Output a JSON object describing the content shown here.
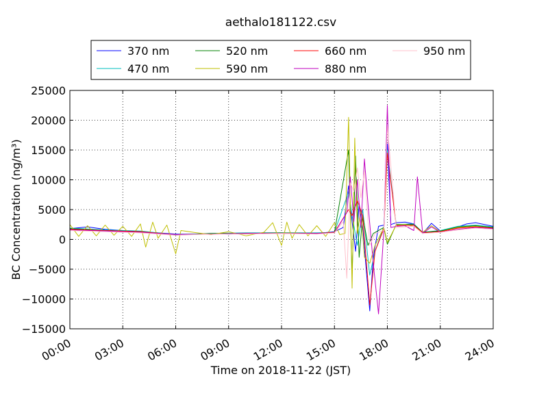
{
  "chart_data": {
    "type": "line",
    "title": "aethalo181122.csv",
    "xlabel": "Time on 2018-11-22 (JST)",
    "ylabel": "BC Concentration (ng/m³)",
    "xlim_hours": [
      0,
      24
    ],
    "ylim": [
      -15000,
      25000
    ],
    "grid": true,
    "grid_style": "dotted",
    "legend_position": "top, above plot",
    "x_ticks": [
      {
        "value": 0,
        "label": "00:00"
      },
      {
        "value": 3,
        "label": "03:00"
      },
      {
        "value": 6,
        "label": "06:00"
      },
      {
        "value": 9,
        "label": "09:00"
      },
      {
        "value": 12,
        "label": "12:00"
      },
      {
        "value": 15,
        "label": "15:00"
      },
      {
        "value": 18,
        "label": "18:00"
      },
      {
        "value": 21,
        "label": "21:00"
      },
      {
        "value": 24,
        "label": "24:00"
      }
    ],
    "y_ticks": [
      {
        "value": 25000,
        "label": "25000"
      },
      {
        "value": 20000,
        "label": "20000"
      },
      {
        "value": 15000,
        "label": "15000"
      },
      {
        "value": 10000,
        "label": "10000"
      },
      {
        "value": 5000,
        "label": "5000"
      },
      {
        "value": 0,
        "label": "0"
      },
      {
        "value": -5000,
        "label": "−5000"
      },
      {
        "value": -10000,
        "label": "−10000"
      },
      {
        "value": -15000,
        "label": "−15000"
      }
    ],
    "series": [
      {
        "name": "370 nm",
        "color": "#0000ff",
        "x": [
          0,
          1,
          2,
          3,
          4,
          5,
          6,
          7,
          8,
          9,
          10,
          11,
          12,
          13,
          14,
          15,
          15.5,
          15.8,
          16.0,
          16.2,
          16.4,
          16.6,
          16.8,
          17.0,
          17.2,
          17.5,
          17.8,
          18.0,
          18.2,
          18.5,
          19,
          19.5,
          20,
          20.5,
          21,
          21.5,
          22,
          22.5,
          23,
          23.5,
          24
        ],
        "y": [
          1800,
          2100,
          1700,
          1500,
          1300,
          1100,
          900,
          900,
          1000,
          900,
          1000,
          1100,
          1100,
          1000,
          1000,
          1300,
          2000,
          9000,
          3000,
          -2000,
          6000,
          2000,
          -5000,
          -12000,
          -3000,
          2200,
          2400,
          16000,
          2500,
          2800,
          2900,
          2600,
          1000,
          2700,
          1400,
          1600,
          2100,
          2600,
          2800,
          2500,
          2200
        ]
      },
      {
        "name": "470 nm",
        "color": "#00bfbf",
        "x": [
          0,
          2,
          4,
          6,
          8,
          10,
          12,
          14,
          15,
          15.8,
          16.0,
          16.3,
          16.6,
          17.0,
          17.3,
          17.8,
          18.0,
          18.5,
          19.5,
          20,
          21,
          22,
          23,
          24
        ],
        "y": [
          1900,
          1600,
          1400,
          800,
          1000,
          1100,
          1100,
          1100,
          1200,
          8000,
          4000,
          -1000,
          5000,
          -6000,
          -2000,
          2200,
          15000,
          2500,
          2600,
          1200,
          1500,
          2200,
          2400,
          2100
        ]
      },
      {
        "name": "520 nm",
        "color": "#008000",
        "x": [
          0,
          2,
          4,
          6,
          8,
          10,
          12,
          14,
          15,
          15.8,
          16.0,
          16.2,
          16.4,
          16.6,
          16.9,
          17.2,
          17.8,
          18.0,
          18.5,
          19.5,
          20,
          21,
          22,
          23,
          24
        ],
        "y": [
          1800,
          1500,
          1300,
          700,
          1000,
          1000,
          1100,
          1000,
          1200,
          15000,
          -6000,
          14000,
          -3000,
          4000,
          -1000,
          1000,
          2000,
          -800,
          2500,
          2500,
          1200,
          1400,
          2100,
          2300,
          2000
        ]
      },
      {
        "name": "590 nm",
        "color": "#bfbf00",
        "x": [
          0,
          0.5,
          1,
          1.5,
          2,
          2.5,
          3,
          3.5,
          4,
          4.3,
          4.7,
          5,
          5.5,
          6,
          6.3,
          7,
          8,
          9,
          10,
          11,
          11.5,
          12,
          12.3,
          12.6,
          13,
          13.5,
          14,
          14.5,
          15,
          15.3,
          15.6,
          15.8,
          16.0,
          16.15,
          16.3,
          16.5,
          16.7,
          17.0,
          17.3,
          17.8,
          18.0,
          18.5,
          19,
          19.5,
          20,
          20.5,
          21,
          22,
          23,
          24
        ],
        "y": [
          2500,
          500,
          2300,
          600,
          2400,
          700,
          2200,
          500,
          2600,
          -1300,
          2900,
          200,
          2400,
          -2400,
          1500,
          1200,
          800,
          1300,
          600,
          1200,
          2800,
          -1000,
          2900,
          200,
          2500,
          600,
          2300,
          500,
          2800,
          800,
          1000,
          20500,
          -8200,
          17000,
          1000,
          5000,
          -3000,
          -4000,
          -1000,
          2000,
          -500,
          2400,
          2500,
          2200,
          1200,
          2300,
          1300,
          2000,
          2200,
          1900
        ]
      },
      {
        "name": "660 nm",
        "color": "#ff0000",
        "x": [
          0,
          2,
          4,
          6,
          8,
          10,
          12,
          14,
          15,
          15.8,
          16.0,
          16.3,
          16.6,
          17.0,
          17.3,
          17.8,
          18.0,
          18.5,
          19.5,
          20,
          21,
          22,
          23,
          24
        ],
        "y": [
          1700,
          1500,
          1300,
          800,
          900,
          1000,
          1000,
          1000,
          1200,
          5000,
          4000,
          6500,
          4000,
          -11000,
          -2000,
          1800,
          14500,
          2300,
          2400,
          1100,
          1300,
          1900,
          2100,
          1900
        ]
      },
      {
        "name": "880 nm",
        "color": "#bf00bf",
        "x": [
          0,
          2,
          4,
          6,
          8,
          10,
          12,
          14,
          15,
          15.7,
          15.9,
          16.1,
          16.3,
          16.5,
          16.7,
          16.9,
          17.2,
          17.5,
          17.8,
          18.0,
          18.2,
          18.5,
          19,
          19.5,
          19.7,
          20,
          20.5,
          21,
          22,
          23,
          24
        ],
        "y": [
          1600,
          1400,
          1200,
          800,
          900,
          1000,
          1000,
          1000,
          1100,
          4500,
          10500,
          3000,
          10000,
          2000,
          13500,
          6000,
          -4000,
          -12500,
          1500,
          22500,
          2000,
          2200,
          2300,
          1500,
          10500,
          1000,
          2100,
          1200,
          1700,
          2000,
          1800
        ]
      },
      {
        "name": "950 nm",
        "color": "#ffc0cb",
        "x": [
          0,
          2,
          4,
          6,
          8,
          10,
          12,
          14,
          15,
          15.5,
          15.7,
          15.9,
          16.1,
          16.3,
          16.5,
          16.7,
          17.0,
          17.3,
          17.8,
          18.0,
          18.5,
          19.5,
          20,
          21,
          22,
          23,
          24
        ],
        "y": [
          1500,
          1300,
          1100,
          700,
          900,
          900,
          1000,
          900,
          1100,
          3000,
          -6500,
          9500,
          8000,
          12000,
          7000,
          11500,
          -1000,
          1000,
          1500,
          19000,
          2000,
          2200,
          1000,
          1200,
          1600,
          1900,
          1700
        ]
      }
    ]
  }
}
